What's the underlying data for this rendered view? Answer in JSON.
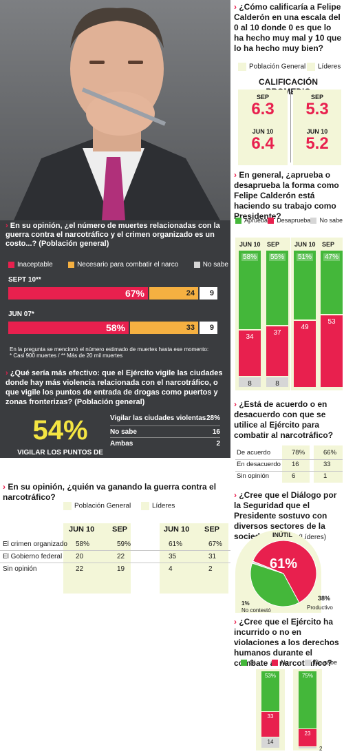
{
  "colors": {
    "green": "#44b73a",
    "red": "#e8204e",
    "orange": "#f5b041",
    "light_gray": "#d6d6d6",
    "pale_green": "#f3f6d8",
    "photo_dark": "#3a3c3f",
    "yellow": "#f4e542"
  },
  "muertes": {
    "question": "En su opinión, ¿el número de muertes relacionadas con la guerra contra el narcotráfico y el crimen organizado es un costo...? (Población general)",
    "legend": [
      "Inaceptable",
      "Necesario para combatir el narco",
      "No sabe"
    ],
    "note": "En la pregunta se mencionó el número estimado de muertes hasta ese momento:",
    "note2": "* Casi 900 muertes / ** Más de 20 mil muertes"
  },
  "ejercito_efectivo": {
    "question": "¿Qué sería más efectivo: que el Ejército vigile las ciudades donde hay más violencia relacionada con el narcotráfico, o que vigile los puntos de entrada de drogas como puertos y zonas fronterizas? (Población general)",
    "big_value": "54%",
    "big_label": "VIGILAR LOS PUNTOS DE ENTRADA DE DROGAS",
    "rows": [
      {
        "label": "Vigilar las ciudades violentas",
        "value": "28%"
      },
      {
        "label": "No sabe",
        "value": "16"
      },
      {
        "label": "Ambas",
        "value": "2"
      }
    ]
  },
  "guerra": {
    "question": "En su opinión, ¿quién va ganando la guerra contra el narcotráfico?",
    "legend": [
      "Población General",
      "Líderes"
    ],
    "headers": [
      "JUN 10",
      "SEP",
      "JUN 10",
      "SEP"
    ],
    "rows": [
      {
        "label": "El crimen organizado",
        "values": [
          "58%",
          "59%",
          "61%",
          "67%"
        ]
      },
      {
        "label": "El Gobierno federal",
        "values": [
          "20",
          "22",
          "35",
          "31"
        ]
      },
      {
        "label": "Sin opinión",
        "values": [
          "22",
          "19",
          "4",
          "2"
        ]
      }
    ]
  },
  "calificacion": {
    "question": "¿Cómo calificaría a Felipe Calderón en una escala del 0 al 10 donde 0 es que lo ha hecho muy mal y 10 que lo ha hecho muy bien?",
    "legend": [
      "Población General",
      "Líderes"
    ],
    "title": "CALIFICACIÓN PROMEDIO",
    "left": [
      {
        "label": "SEP",
        "value": "6.3"
      },
      {
        "label": "JUN 10",
        "value": "6.4"
      }
    ],
    "right": [
      {
        "label": "SEP",
        "value": "5.3"
      },
      {
        "label": "JUN 10",
        "value": "5.2"
      }
    ]
  },
  "aprobacion": {
    "question": "En general, ¿aprueba o desaprueba la forma como Felipe Calderón está haciendo su trabajo como Presidente?",
    "legend": [
      "Aprueba",
      "Desaprueba",
      "No sabe"
    ],
    "headers": [
      "JUN 10",
      "SEP",
      "JUN 10",
      "SEP"
    ]
  },
  "acuerdo": {
    "question": "¿Está de acuerdo o en desacuerdo con que se utilice al Ejército para combatir al narcotráfico?",
    "rows": [
      {
        "label": "De acuerdo",
        "values": [
          "78%",
          "66%"
        ]
      },
      {
        "label": "En desacuerdo",
        "values": [
          "16",
          "33"
        ]
      },
      {
        "label": "Sin opinión",
        "values": [
          "6",
          "1"
        ]
      }
    ]
  },
  "dialogo": {
    "question": "¿Cree que el Diálogo por la Seguridad que el Presidente sostuvo con diversos sectores de la sociedad fue...?",
    "suffix": "(Líderes)",
    "labels": {
      "inutil": "INÚTIL",
      "inutil_value": "61%",
      "no_contesto_value": "1%",
      "no_contesto": "No contestó",
      "productivo_value": "38%",
      "productivo": "Productivo"
    }
  },
  "ddhh": {
    "question": "¿Cree que el Ejército ha incurrido o no en violaciones a los derechos humanos durante el combate al narcotráfico?",
    "legend": [
      "Sí",
      "No",
      "No sabe"
    ]
  },
  "chart_data": [
    {
      "type": "bar",
      "orientation": "horizontal",
      "stacked": true,
      "categories": [
        "SEPT 10**",
        "JUN 07*"
      ],
      "series": [
        {
          "name": "Inaceptable",
          "values": [
            67,
            58
          ]
        },
        {
          "name": "Necesario para combatir el narco",
          "values": [
            24,
            33
          ]
        },
        {
          "name": "No sabe",
          "values": [
            9,
            9
          ]
        }
      ]
    },
    {
      "type": "bar",
      "stacked": true,
      "groups": [
        "Población General",
        "Líderes"
      ],
      "categories": [
        "JUN 10",
        "SEP",
        "JUN 10",
        "SEP"
      ],
      "series": [
        {
          "name": "Aprueba",
          "values": [
            58,
            55,
            51,
            47
          ]
        },
        {
          "name": "Desaprueba",
          "values": [
            34,
            37,
            49,
            53
          ]
        },
        {
          "name": "No sabe",
          "values": [
            8,
            8,
            null,
            null
          ]
        }
      ]
    },
    {
      "type": "pie",
      "categories": [
        "Inútil",
        "Productivo",
        "No contestó"
      ],
      "values": [
        61,
        38,
        1
      ]
    },
    {
      "type": "bar",
      "stacked": true,
      "categories": [
        "Población General",
        "Líderes"
      ],
      "series": [
        {
          "name": "Sí",
          "values": [
            53,
            75
          ]
        },
        {
          "name": "No",
          "values": [
            33,
            23
          ]
        },
        {
          "name": "No sabe",
          "values": [
            14,
            2
          ]
        }
      ]
    }
  ]
}
